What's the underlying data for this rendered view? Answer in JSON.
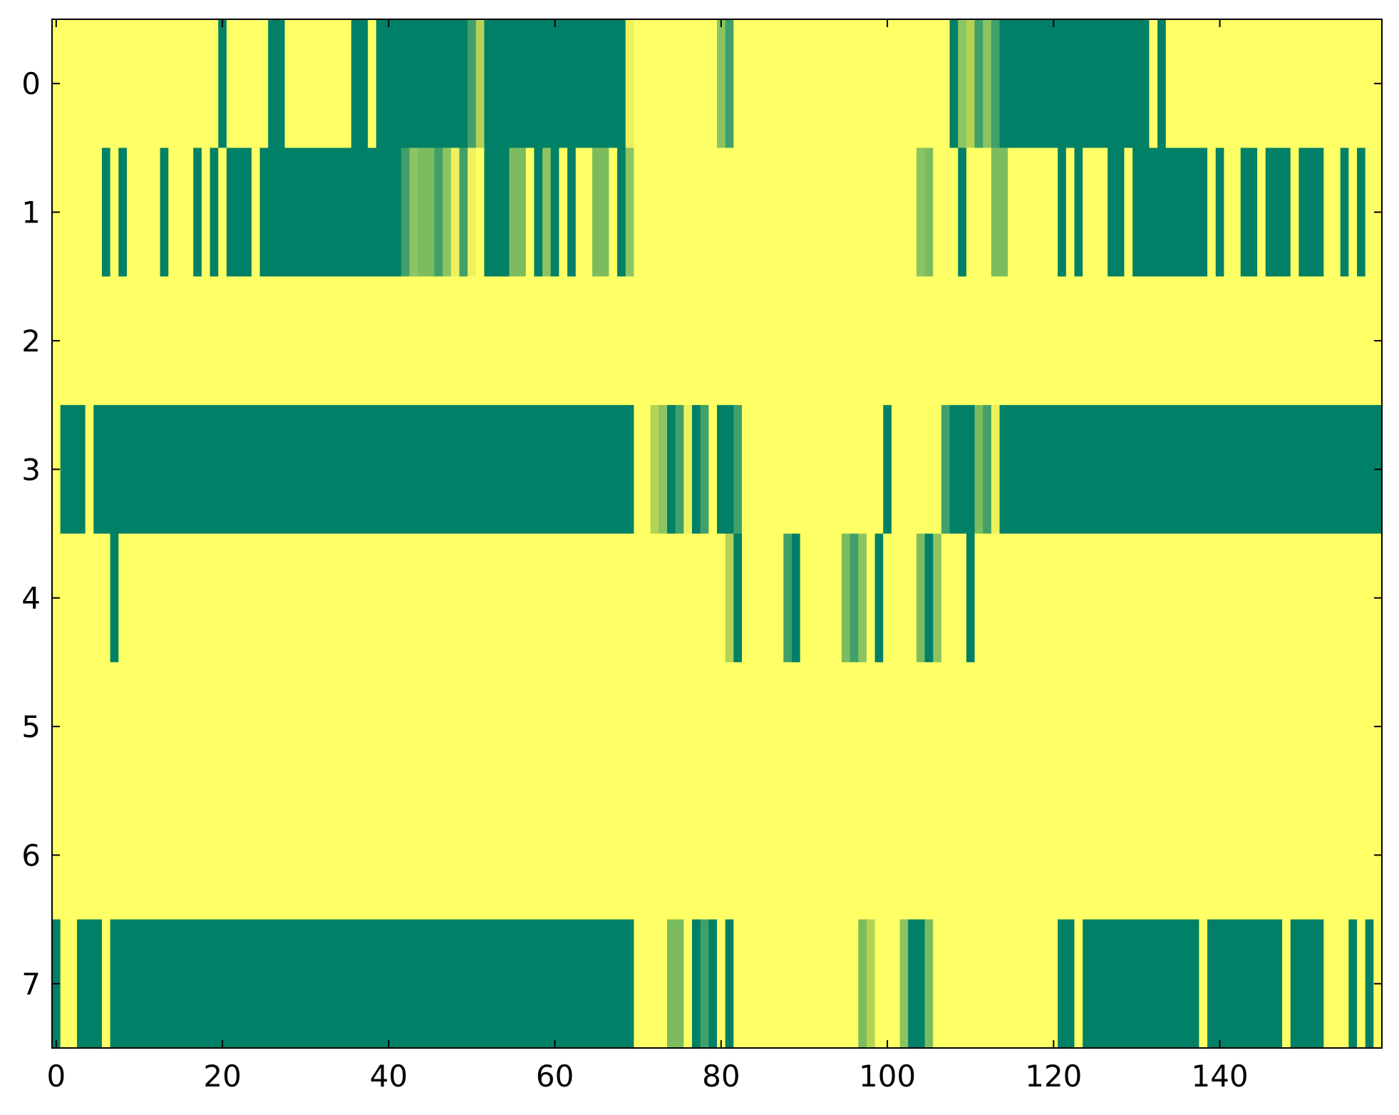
{
  "chart_data": {
    "type": "heatmap",
    "title": "",
    "xlabel": "",
    "ylabel": "",
    "xlim": [
      -0.5,
      159.5
    ],
    "ylim": [
      7.5,
      -0.5
    ],
    "x_ticks": [
      0,
      20,
      40,
      60,
      80,
      100,
      120,
      140
    ],
    "y_ticks": [
      0,
      1,
      2,
      3,
      4,
      5,
      6,
      7
    ],
    "n_columns": 160,
    "colormap": "summer_r",
    "colorscale": {
      "0": "#ffff66",
      "0.12": "#eef15e",
      "0.35": "#b4d254",
      "0.5": "#8cc461",
      "0.65": "#7cbc5e",
      "0.8": "#41a06a",
      "1": "#008066"
    },
    "rows": [
      {
        "row": 0,
        "segments": [
          [
            0,
            19,
            0
          ],
          [
            20,
            20,
            1
          ],
          [
            21,
            25,
            0
          ],
          [
            26,
            27,
            1
          ],
          [
            28,
            35,
            0
          ],
          [
            36,
            37,
            1
          ],
          [
            38,
            38,
            0
          ],
          [
            39,
            49,
            1
          ],
          [
            50,
            50,
            0.8
          ],
          [
            51,
            51,
            0.35
          ],
          [
            52,
            68,
            1
          ],
          [
            69,
            69,
            0.12
          ],
          [
            70,
            79,
            0
          ],
          [
            80,
            80,
            0.5
          ],
          [
            81,
            81,
            0.8
          ],
          [
            82,
            107,
            0
          ],
          [
            108,
            108,
            1
          ],
          [
            109,
            109,
            0.5
          ],
          [
            110,
            110,
            0.35
          ],
          [
            111,
            111,
            0.8
          ],
          [
            112,
            112,
            0.5
          ],
          [
            113,
            113,
            0.8
          ],
          [
            114,
            131,
            1
          ],
          [
            132,
            132,
            0
          ],
          [
            133,
            133,
            1
          ],
          [
            134,
            159,
            0
          ]
        ]
      },
      {
        "row": 1,
        "segments": [
          [
            0,
            5,
            0
          ],
          [
            6,
            6,
            1
          ],
          [
            7,
            7,
            0
          ],
          [
            8,
            8,
            1
          ],
          [
            9,
            12,
            0
          ],
          [
            13,
            13,
            1
          ],
          [
            14,
            16,
            0
          ],
          [
            17,
            17,
            1
          ],
          [
            18,
            18,
            0
          ],
          [
            19,
            19,
            1
          ],
          [
            20,
            20,
            0
          ],
          [
            21,
            23,
            1
          ],
          [
            24,
            24,
            0
          ],
          [
            25,
            41,
            1
          ],
          [
            42,
            42,
            0.8
          ],
          [
            43,
            43,
            0.5
          ],
          [
            44,
            45,
            0.65
          ],
          [
            46,
            46,
            0.8
          ],
          [
            47,
            47,
            0.5
          ],
          [
            48,
            48,
            0.12
          ],
          [
            49,
            49,
            0.8
          ],
          [
            50,
            50,
            0.12
          ],
          [
            51,
            51,
            0
          ],
          [
            52,
            54,
            1
          ],
          [
            55,
            56,
            0.65
          ],
          [
            57,
            57,
            0
          ],
          [
            58,
            58,
            1
          ],
          [
            59,
            59,
            0.5
          ],
          [
            60,
            60,
            1
          ],
          [
            61,
            61,
            0
          ],
          [
            62,
            62,
            1
          ],
          [
            63,
            64,
            0
          ],
          [
            65,
            66,
            0.65
          ],
          [
            67,
            67,
            0
          ],
          [
            68,
            68,
            1
          ],
          [
            69,
            69,
            0.5
          ],
          [
            70,
            103,
            0
          ],
          [
            104,
            104,
            0.5
          ],
          [
            105,
            105,
            0.65
          ],
          [
            106,
            108,
            0
          ],
          [
            109,
            109,
            1
          ],
          [
            110,
            112,
            0
          ],
          [
            113,
            114,
            0.65
          ],
          [
            115,
            120,
            0
          ],
          [
            121,
            121,
            1
          ],
          [
            122,
            122,
            0
          ],
          [
            123,
            123,
            1
          ],
          [
            124,
            126,
            0
          ],
          [
            127,
            128,
            1
          ],
          [
            129,
            129,
            0
          ],
          [
            130,
            138,
            1
          ],
          [
            139,
            139,
            0
          ],
          [
            140,
            140,
            1
          ],
          [
            141,
            142,
            0
          ],
          [
            143,
            144,
            1
          ],
          [
            145,
            145,
            0
          ],
          [
            146,
            148,
            1
          ],
          [
            149,
            149,
            0
          ],
          [
            150,
            152,
            1
          ],
          [
            153,
            154,
            0
          ],
          [
            155,
            155,
            1
          ],
          [
            156,
            156,
            0
          ],
          [
            157,
            157,
            1
          ],
          [
            158,
            159,
            0
          ]
        ]
      },
      {
        "row": 2,
        "segments": [
          [
            0,
            159,
            0
          ]
        ]
      },
      {
        "row": 3,
        "segments": [
          [
            0,
            0,
            0
          ],
          [
            1,
            3,
            1
          ],
          [
            4,
            4,
            0
          ],
          [
            5,
            69,
            1
          ],
          [
            70,
            71,
            0
          ],
          [
            72,
            72,
            0.35
          ],
          [
            73,
            73,
            0.5
          ],
          [
            74,
            74,
            1
          ],
          [
            75,
            75,
            0.8
          ],
          [
            76,
            76,
            0.12
          ],
          [
            77,
            77,
            1
          ],
          [
            78,
            78,
            0.8
          ],
          [
            79,
            79,
            0
          ],
          [
            80,
            81,
            1
          ],
          [
            82,
            82,
            0.8
          ],
          [
            83,
            99,
            0
          ],
          [
            100,
            100,
            1
          ],
          [
            101,
            106,
            0
          ],
          [
            107,
            107,
            0.8
          ],
          [
            108,
            110,
            1
          ],
          [
            111,
            111,
            0.65
          ],
          [
            112,
            112,
            0.8
          ],
          [
            113,
            113,
            0.12
          ],
          [
            114,
            159,
            1
          ]
        ]
      },
      {
        "row": 4,
        "segments": [
          [
            0,
            6,
            0
          ],
          [
            7,
            7,
            1
          ],
          [
            8,
            80,
            0
          ],
          [
            81,
            81,
            0.35
          ],
          [
            82,
            82,
            1
          ],
          [
            83,
            87,
            0
          ],
          [
            88,
            88,
            0.8
          ],
          [
            89,
            89,
            1
          ],
          [
            90,
            94,
            0
          ],
          [
            95,
            95,
            0.65
          ],
          [
            96,
            96,
            0.8
          ],
          [
            97,
            97,
            0.5
          ],
          [
            98,
            98,
            0
          ],
          [
            99,
            99,
            1
          ],
          [
            100,
            103,
            0
          ],
          [
            104,
            104,
            0.65
          ],
          [
            105,
            105,
            1
          ],
          [
            106,
            106,
            0.5
          ],
          [
            107,
            109,
            0
          ],
          [
            110,
            110,
            1
          ],
          [
            111,
            159,
            0
          ]
        ]
      },
      {
        "row": 5,
        "segments": [
          [
            0,
            159,
            0
          ]
        ]
      },
      {
        "row": 6,
        "segments": [
          [
            0,
            159,
            0
          ]
        ]
      },
      {
        "row": 7,
        "segments": [
          [
            0,
            0,
            1
          ],
          [
            1,
            2,
            0
          ],
          [
            3,
            5,
            1
          ],
          [
            6,
            6,
            0
          ],
          [
            7,
            69,
            1
          ],
          [
            70,
            73,
            0
          ],
          [
            74,
            75,
            0.65
          ],
          [
            76,
            76,
            0
          ],
          [
            77,
            77,
            1
          ],
          [
            78,
            78,
            0.8
          ],
          [
            79,
            79,
            1
          ],
          [
            80,
            80,
            0
          ],
          [
            81,
            81,
            1
          ],
          [
            82,
            96,
            0
          ],
          [
            97,
            97,
            0.65
          ],
          [
            98,
            98,
            0.35
          ],
          [
            99,
            101,
            0
          ],
          [
            102,
            102,
            0.5
          ],
          [
            103,
            104,
            1
          ],
          [
            105,
            105,
            0.65
          ],
          [
            106,
            120,
            0
          ],
          [
            121,
            122,
            1
          ],
          [
            123,
            123,
            0
          ],
          [
            124,
            137,
            1
          ],
          [
            138,
            138,
            0
          ],
          [
            139,
            147,
            1
          ],
          [
            148,
            148,
            0
          ],
          [
            149,
            152,
            1
          ],
          [
            153,
            155,
            0
          ],
          [
            156,
            156,
            1
          ],
          [
            157,
            157,
            0
          ],
          [
            158,
            158,
            1
          ],
          [
            159,
            159,
            0
          ]
        ]
      }
    ]
  }
}
